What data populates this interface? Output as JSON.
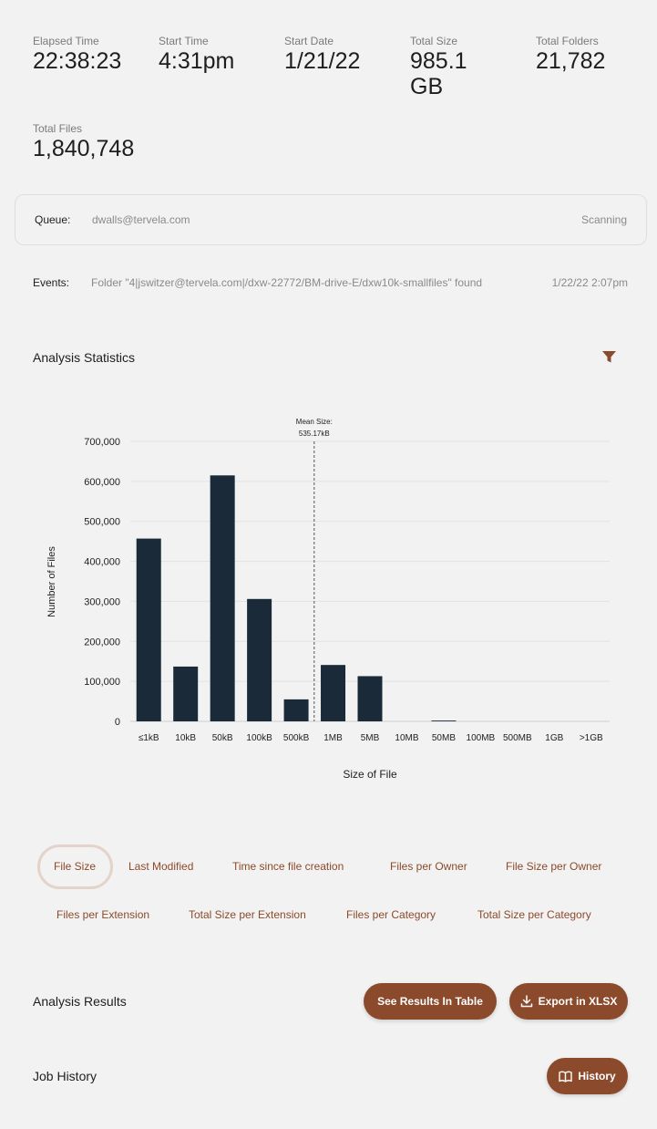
{
  "stats": {
    "elapsed": {
      "label": "Elapsed Time",
      "value": "22:38:23"
    },
    "start_time": {
      "label": "Start Time",
      "value": "4:31pm"
    },
    "start_date": {
      "label": "Start Date",
      "value": "1/21/22"
    },
    "total_size": {
      "label": "Total Size",
      "value": "985.1 GB"
    },
    "total_folders": {
      "label": "Total Folders",
      "value": "21,782"
    },
    "total_files": {
      "label": "Total Files",
      "value": "1,840,748"
    }
  },
  "queue": {
    "label": "Queue:",
    "value": "dwalls@tervela.com",
    "status": "Scanning"
  },
  "events": {
    "label": "Events:",
    "value": "Folder \"4|jswitzer@tervela.com|/dxw-22772/BM-drive-E/dxw10k-smallfiles\" found",
    "time": "1/22/22 2:07pm"
  },
  "analysis": {
    "title": "Analysis Statistics",
    "filter_icon": "filter-icon"
  },
  "chart_data": {
    "type": "bar",
    "categories": [
      "≤1kB",
      "10kB",
      "50kB",
      "100kB",
      "500kB",
      "1MB",
      "5MB",
      "10MB",
      "50MB",
      "100MB",
      "500MB",
      "1GB",
      ">1GB"
    ],
    "values": [
      457000,
      137000,
      615000,
      306000,
      55000,
      141000,
      113000,
      0,
      2000,
      0,
      0,
      0,
      0
    ],
    "xlabel": "Size of File",
    "ylabel": "Number of Files",
    "ylim": [
      0,
      700000
    ],
    "yticks": [
      "0",
      "100,000",
      "200,000",
      "300,000",
      "400,000",
      "500,000",
      "600,000",
      "700,000"
    ],
    "grid": true,
    "bar_color": "#1b2a38",
    "mean_label": "Mean Size:",
    "mean_value": "535.17kB",
    "mean_position": 4.5
  },
  "tabs_row1": [
    "File Size",
    "Last Modified",
    "Time since file creation",
    "Files per Owner",
    "File Size per Owner"
  ],
  "tabs_row2": [
    "Files per Extension",
    "Total Size per Extension",
    "Files per Category",
    "Total Size per Category"
  ],
  "results": {
    "title": "Analysis Results",
    "table_button": "See Results In Table",
    "export_button": "Export in XLSX",
    "export_icon": "download-icon"
  },
  "history": {
    "title": "Job History",
    "button": "History",
    "button_icon": "book-icon"
  },
  "colors": {
    "accent": "#8b4a2b",
    "accent_light": "#e4d3cb",
    "bar": "#1b2a38"
  }
}
